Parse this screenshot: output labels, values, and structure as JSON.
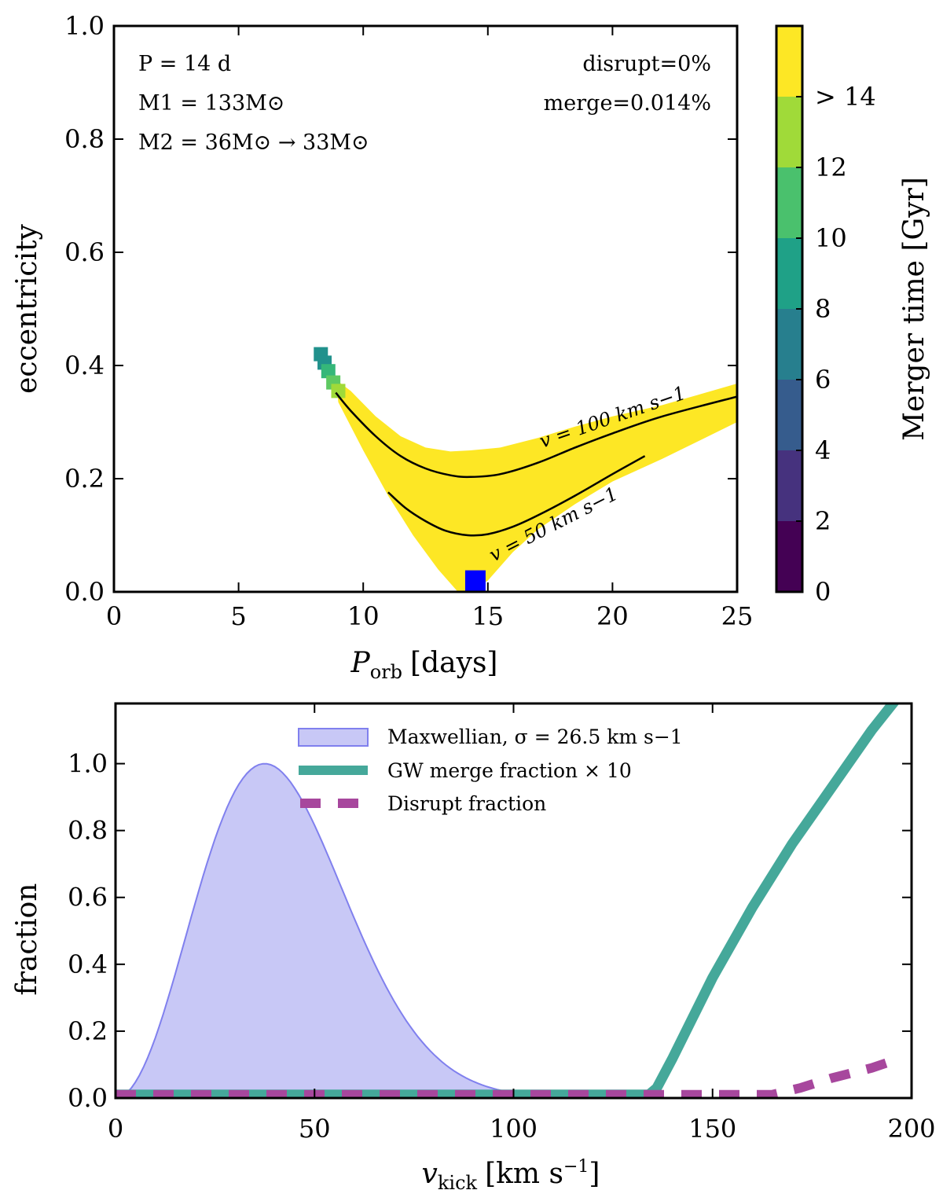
{
  "chart_data": [
    {
      "type": "scatter",
      "panel": "top",
      "xlabel": "P_orb [days]",
      "xlabel_main": "P",
      "xlabel_sub": "orb",
      "xlabel_unit": "[days]",
      "ylabel": "eccentricity",
      "xlim": [
        0,
        25
      ],
      "ylim": [
        0,
        1.0
      ],
      "xticks": [
        0,
        5,
        10,
        15,
        20,
        25
      ],
      "xtick_labels": [
        "0",
        "5",
        "10",
        "15",
        "20",
        "25"
      ],
      "yticks": [
        0.0,
        0.2,
        0.4,
        0.6,
        0.8,
        1.0
      ],
      "ytick_labels": [
        "0.0",
        "0.2",
        "0.4",
        "0.6",
        "0.8",
        "1.0"
      ],
      "annotations": {
        "period": "P = 14 d",
        "mass1": "M1 = 133M⊙",
        "mass2": "M2 = 36M⊙ → 33M⊙",
        "disrupt": "disrupt=0%",
        "merge": "merge=0.014%"
      },
      "curves": [
        {
          "name": "v = 100 km s−1",
          "label": "v = 100 km s−1",
          "x": [
            8.9,
            9.5,
            10.5,
            11.5,
            12.5,
            13.5,
            14.3,
            15.5,
            17,
            18.5,
            20,
            22,
            25
          ],
          "y": [
            0.352,
            0.32,
            0.275,
            0.24,
            0.218,
            0.206,
            0.203,
            0.208,
            0.228,
            0.255,
            0.28,
            0.31,
            0.345
          ]
        },
        {
          "name": "v = 50 km s−1",
          "label": "v = 50 km s−1",
          "x": [
            11.0,
            11.7,
            12.5,
            13.3,
            14.2,
            15.0,
            16.0,
            17.0,
            18.5,
            20.0,
            21.3
          ],
          "y": [
            0.176,
            0.148,
            0.125,
            0.108,
            0.1,
            0.102,
            0.115,
            0.135,
            0.17,
            0.208,
            0.24
          ]
        }
      ],
      "region": {
        "name": "post-kick orbits",
        "color": "#fde725",
        "upper": {
          "x": [
            8.9,
            9.5,
            10.5,
            11.5,
            12.5,
            13.5,
            14.3,
            15.5,
            17,
            18.5,
            20,
            22,
            25
          ],
          "y": [
            0.375,
            0.355,
            0.31,
            0.275,
            0.255,
            0.248,
            0.25,
            0.255,
            0.272,
            0.292,
            0.31,
            0.33,
            0.368
          ]
        },
        "lower": {
          "x": [
            9.0,
            10.0,
            11.0,
            12.0,
            13.0,
            13.8,
            14.3,
            15.0,
            16.0,
            17.0,
            18.5,
            20.0,
            22.0,
            25.0
          ],
          "y": [
            0.335,
            0.25,
            0.17,
            0.1,
            0.04,
            0.0,
            0.0,
            0.02,
            0.07,
            0.11,
            0.155,
            0.195,
            0.235,
            0.3
          ]
        }
      },
      "short_merger_points": [
        {
          "x": 8.3,
          "y": 0.42,
          "merger_time_gyr": 8,
          "color": "#21918c"
        },
        {
          "x": 8.45,
          "y": 0.405,
          "merger_time_gyr": 8,
          "color": "#21918c"
        },
        {
          "x": 8.6,
          "y": 0.39,
          "merger_time_gyr": 10,
          "color": "#35b779"
        },
        {
          "x": 8.8,
          "y": 0.37,
          "merger_time_gyr": 11,
          "color": "#5ec962"
        },
        {
          "x": 9.0,
          "y": 0.355,
          "merger_time_gyr": 13,
          "color": "#a0da39"
        }
      ],
      "marker": {
        "name": "pre-explosion orbit",
        "x": 14.5,
        "y": 0.02,
        "color": "#0000ff",
        "shape": "square"
      },
      "colorbar": {
        "label": "Merger time [Gyr]",
        "ticks": [
          0,
          2,
          4,
          6,
          8,
          10,
          12
        ],
        "tick_labels": [
          "0",
          "2",
          "4",
          "6",
          "8",
          "10",
          "12",
          "> 14"
        ],
        "top_label": "> 14",
        "range": [
          0,
          16
        ],
        "bins": [
          {
            "from": 0,
            "to": 2,
            "color": "#440154"
          },
          {
            "from": 2,
            "to": 4,
            "color": "#46327e"
          },
          {
            "from": 4,
            "to": 6,
            "color": "#365c8d"
          },
          {
            "from": 6,
            "to": 8,
            "color": "#277f8e"
          },
          {
            "from": 8,
            "to": 10,
            "color": "#1fa187"
          },
          {
            "from": 10,
            "to": 12,
            "color": "#4ac16d"
          },
          {
            "from": 12,
            "to": 14,
            "color": "#a0da39"
          },
          {
            "from": 14,
            "to": 16,
            "color": "#fde725"
          }
        ]
      }
    },
    {
      "type": "line",
      "panel": "bottom",
      "xlabel": "v_kick [km s^-1]",
      "xlabel_main": "v",
      "xlabel_sub": "kick",
      "xlabel_unit": "[km s",
      "xlabel_exp": "−1",
      "xlabel_close": "]",
      "ylabel": "fraction",
      "xlim": [
        0,
        200
      ],
      "ylim": [
        0,
        1.18
      ],
      "xticks": [
        0,
        50,
        100,
        150,
        200
      ],
      "xtick_labels": [
        "0",
        "50",
        "100",
        "150",
        "200"
      ],
      "yticks": [
        0.0,
        0.2,
        0.4,
        0.6,
        0.8,
        1.0
      ],
      "ytick_labels": [
        "0.0",
        "0.2",
        "0.4",
        "0.6",
        "0.8",
        "1.0"
      ],
      "legend_position": "top-center",
      "series": [
        {
          "name": "Maxwellian, σ = 26.5 km s−1",
          "style": "area",
          "color": "#8080ee",
          "sigma": 26.5
        },
        {
          "name": "GW merge fraction × 10",
          "style": "solid",
          "color": "#45a89a",
          "x": [
            0,
            100,
            134,
            136,
            140,
            145,
            150,
            160,
            170,
            180,
            190,
            196
          ],
          "y": [
            0.01,
            0.01,
            0.01,
            0.03,
            0.12,
            0.24,
            0.36,
            0.57,
            0.76,
            0.93,
            1.1,
            1.19
          ]
        },
        {
          "name": "Disrupt fraction",
          "style": "dashed",
          "color": "#a7479d",
          "x": [
            0,
            100,
            150,
            165,
            172,
            180,
            190,
            195
          ],
          "y": [
            0.01,
            0.01,
            0.01,
            0.01,
            0.03,
            0.06,
            0.09,
            0.11
          ]
        }
      ]
    }
  ]
}
